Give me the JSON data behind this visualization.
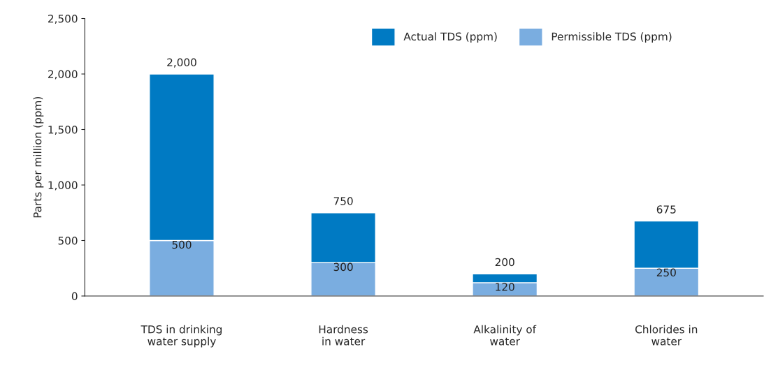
{
  "chart_data": {
    "type": "bar",
    "stacked": true,
    "ylabel": "Parts per million (ppm)",
    "categories": [
      "TDS in drinking\nwater supply",
      "Hardness\nin water",
      "Alkalinity of\nwater",
      "Chlorides in\nwater"
    ],
    "series": [
      {
        "name": "Permissible TDS (ppm)",
        "color": "#7aade0",
        "values": [
          500,
          300,
          120,
          250
        ],
        "value_labels": [
          "500",
          "300",
          "120",
          "250"
        ]
      },
      {
        "name": "Actual TDS (ppm)",
        "color": "#007ac3",
        "values": [
          1500,
          450,
          80,
          425
        ]
      }
    ],
    "totals": [
      "2,000",
      "750",
      "200",
      "675"
    ],
    "ylim": [
      0,
      2500
    ],
    "yticks": [
      {
        "value": 0,
        "label": "0"
      },
      {
        "value": 500,
        "label": "500"
      },
      {
        "value": 1000,
        "label": "1,000"
      },
      {
        "value": 1500,
        "label": "1,500"
      },
      {
        "value": 2000,
        "label": "2,000"
      },
      {
        "value": 2500,
        "label": "2,500"
      }
    ],
    "grid": false,
    "legend": "top right"
  }
}
